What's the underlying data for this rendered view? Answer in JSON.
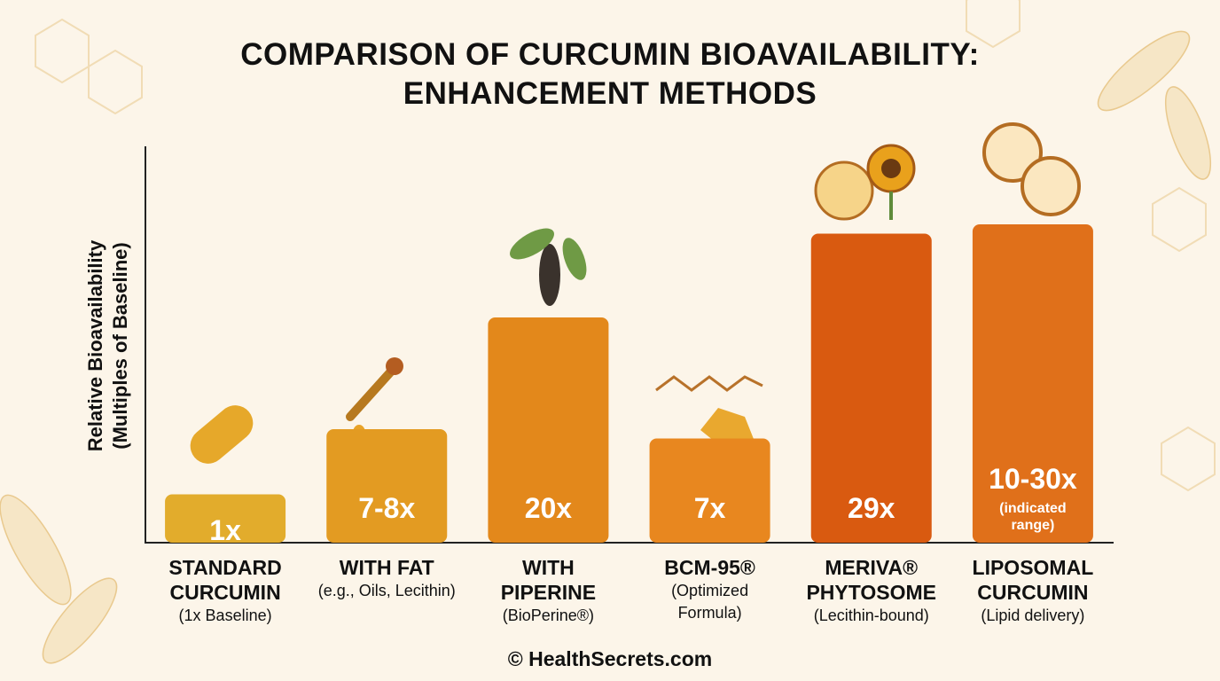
{
  "chart_data": {
    "type": "bar",
    "title": [
      "COMPARISON OF CURCUMIN BIOAVAILABILITY:",
      "ENHANCEMENT METHODS"
    ],
    "y_label": [
      "Relative Bioavailability",
      "(Multiples of Baseline)"
    ],
    "categories": [
      "STANDARD CURCUMIN",
      "WITH FAT",
      "WITH PIPERINE",
      "BCM-95®",
      "MERIVA® PHYTOSOME",
      "LIPOSOMAL CURCUMIN"
    ],
    "category_notes": [
      "(1x Baseline)",
      "(e.g., Oils, Lecithin)",
      "(BioPerine®)",
      "(Optimized Formula)",
      "(Lecithin-bound)",
      "(Lipid delivery)"
    ],
    "values": [
      1,
      8,
      20,
      7,
      29,
      30
    ],
    "value_labels": [
      "1x",
      "7-8x",
      "20x",
      "7x",
      "29x",
      "10-30x"
    ],
    "value_notes": [
      null,
      null,
      null,
      null,
      null,
      "(indicated range)"
    ],
    "colors": [
      "#e2ac2c",
      "#e39b22",
      "#e3881b",
      "#e8871f",
      "#d95a10",
      "#e0701a"
    ],
    "footer": "© HealthSecrets.com"
  }
}
